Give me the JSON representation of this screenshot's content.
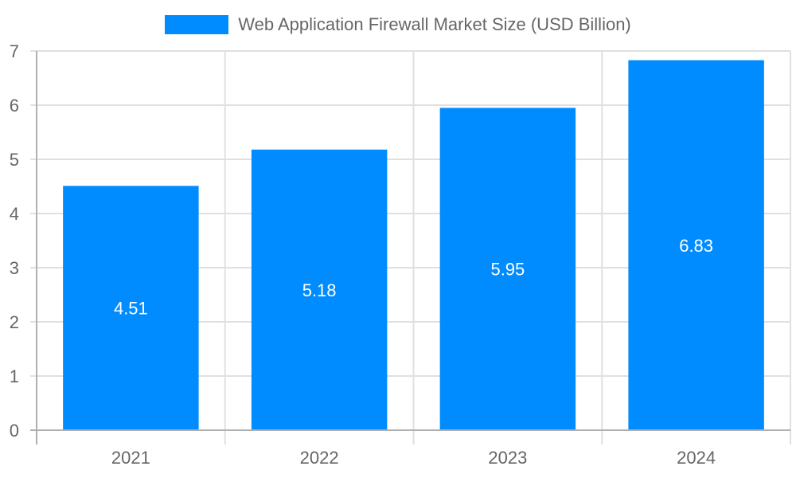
{
  "legend": {
    "label": "Web Application Firewall Market Size (USD Billion)",
    "color": "#008cff"
  },
  "chart_data": {
    "type": "bar",
    "title": "",
    "categories": [
      "2021",
      "2022",
      "2023",
      "2024"
    ],
    "series": [
      {
        "name": "Web Application Firewall Market Size (USD Billion)",
        "values": [
          4.51,
          5.18,
          5.95,
          6.83
        ],
        "color": "#008cff"
      }
    ],
    "xlabel": "",
    "ylabel": "",
    "ylim": [
      0,
      7
    ],
    "yticks": [
      "0",
      "1",
      "2",
      "3",
      "4",
      "5",
      "6",
      "7"
    ],
    "grid": true,
    "legend_position": "top",
    "data_labels": [
      "4.51",
      "5.18",
      "5.95",
      "6.83"
    ]
  }
}
